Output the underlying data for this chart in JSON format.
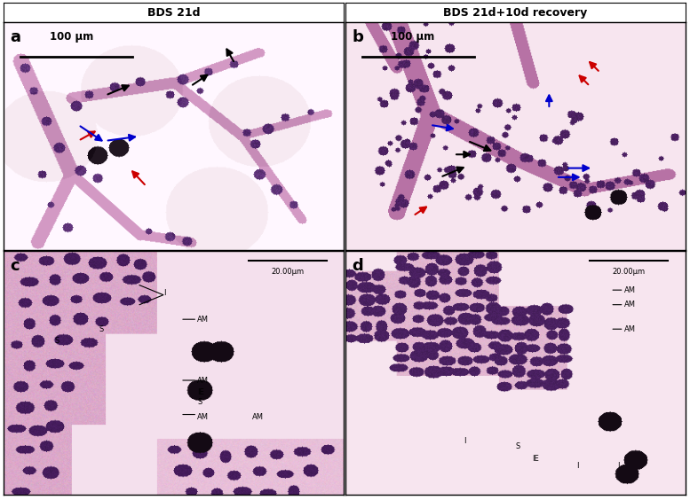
{
  "title_left": "BDS 21d",
  "title_right": "BDS 21d+10d recovery",
  "panel_labels": [
    "a",
    "b",
    "c",
    "d"
  ],
  "scale_bar_top": "100 μm",
  "scale_bar_bottom": "20.00μm",
  "bg_color": "#ffffff",
  "border_color": "#000000",
  "tissue_pink": "#e8b4c8",
  "tissue_light_pink": "#f0d0e0",
  "cell_purple": "#6b3a7d",
  "cell_dark": "#2d1a3d",
  "dark_spot": "#1a0a1a",
  "arrow_black": "#000000",
  "arrow_red": "#cc0000",
  "arrow_blue": "#0000cc",
  "label_fontsize": 9,
  "panel_label_fontsize": 13,
  "title_fontsize": 9
}
